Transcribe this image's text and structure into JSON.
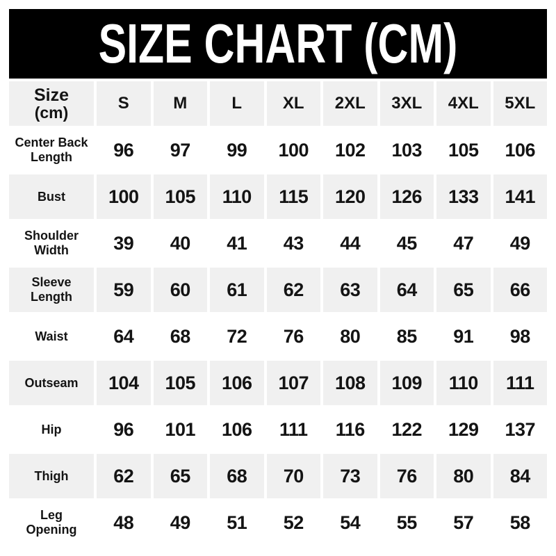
{
  "banner": {
    "background": "#000000",
    "text_color": "#ffffff"
  },
  "chart_data": {
    "type": "table",
    "title": "SIZE CHART (CM)",
    "unit": "cm",
    "corner_header": {
      "line1": "Size",
      "line2": "(cm)"
    },
    "columns": [
      "S",
      "M",
      "L",
      "XL",
      "2XL",
      "3XL",
      "4XL",
      "5XL"
    ],
    "rows": [
      {
        "label": "Center Back Length",
        "label_lines": [
          "Center Back",
          "Length"
        ],
        "values": [
          96,
          97,
          99,
          100,
          102,
          103,
          105,
          106
        ]
      },
      {
        "label": "Bust",
        "label_lines": [
          "Bust"
        ],
        "values": [
          100,
          105,
          110,
          115,
          120,
          126,
          133,
          141
        ]
      },
      {
        "label": "Shoulder Width",
        "label_lines": [
          "Shoulder",
          "Width"
        ],
        "values": [
          39,
          40,
          41,
          43,
          44,
          45,
          47,
          49
        ]
      },
      {
        "label": "Sleeve Length",
        "label_lines": [
          "Sleeve",
          "Length"
        ],
        "values": [
          59,
          60,
          61,
          62,
          63,
          64,
          65,
          66
        ]
      },
      {
        "label": "Waist",
        "label_lines": [
          "Waist"
        ],
        "values": [
          64,
          68,
          72,
          76,
          80,
          85,
          91,
          98
        ]
      },
      {
        "label": "Outseam",
        "label_lines": [
          "Outseam"
        ],
        "values": [
          104,
          105,
          106,
          107,
          108,
          109,
          110,
          111
        ]
      },
      {
        "label": "Hip",
        "label_lines": [
          "Hip"
        ],
        "values": [
          96,
          101,
          106,
          111,
          116,
          122,
          129,
          137
        ]
      },
      {
        "label": "Thigh",
        "label_lines": [
          "Thigh"
        ],
        "values": [
          62,
          65,
          68,
          70,
          73,
          76,
          80,
          84
        ]
      },
      {
        "label": "Leg Opening",
        "label_lines": [
          "Leg",
          "Opening"
        ],
        "values": [
          48,
          49,
          51,
          52,
          54,
          55,
          57,
          58
        ]
      }
    ],
    "layout": {
      "legend": "none",
      "grid": "alternating shaded rows with white gutters between cells",
      "shade_color": "#f0f0f0",
      "shading_pattern": "header row shaded; data rows alternate white/shaded starting white"
    }
  },
  "colors": {
    "banner_bg": "#000000",
    "banner_text": "#ffffff",
    "cell_shade": "#f0f0f0",
    "text": "#141414",
    "page_bg": "#ffffff"
  }
}
